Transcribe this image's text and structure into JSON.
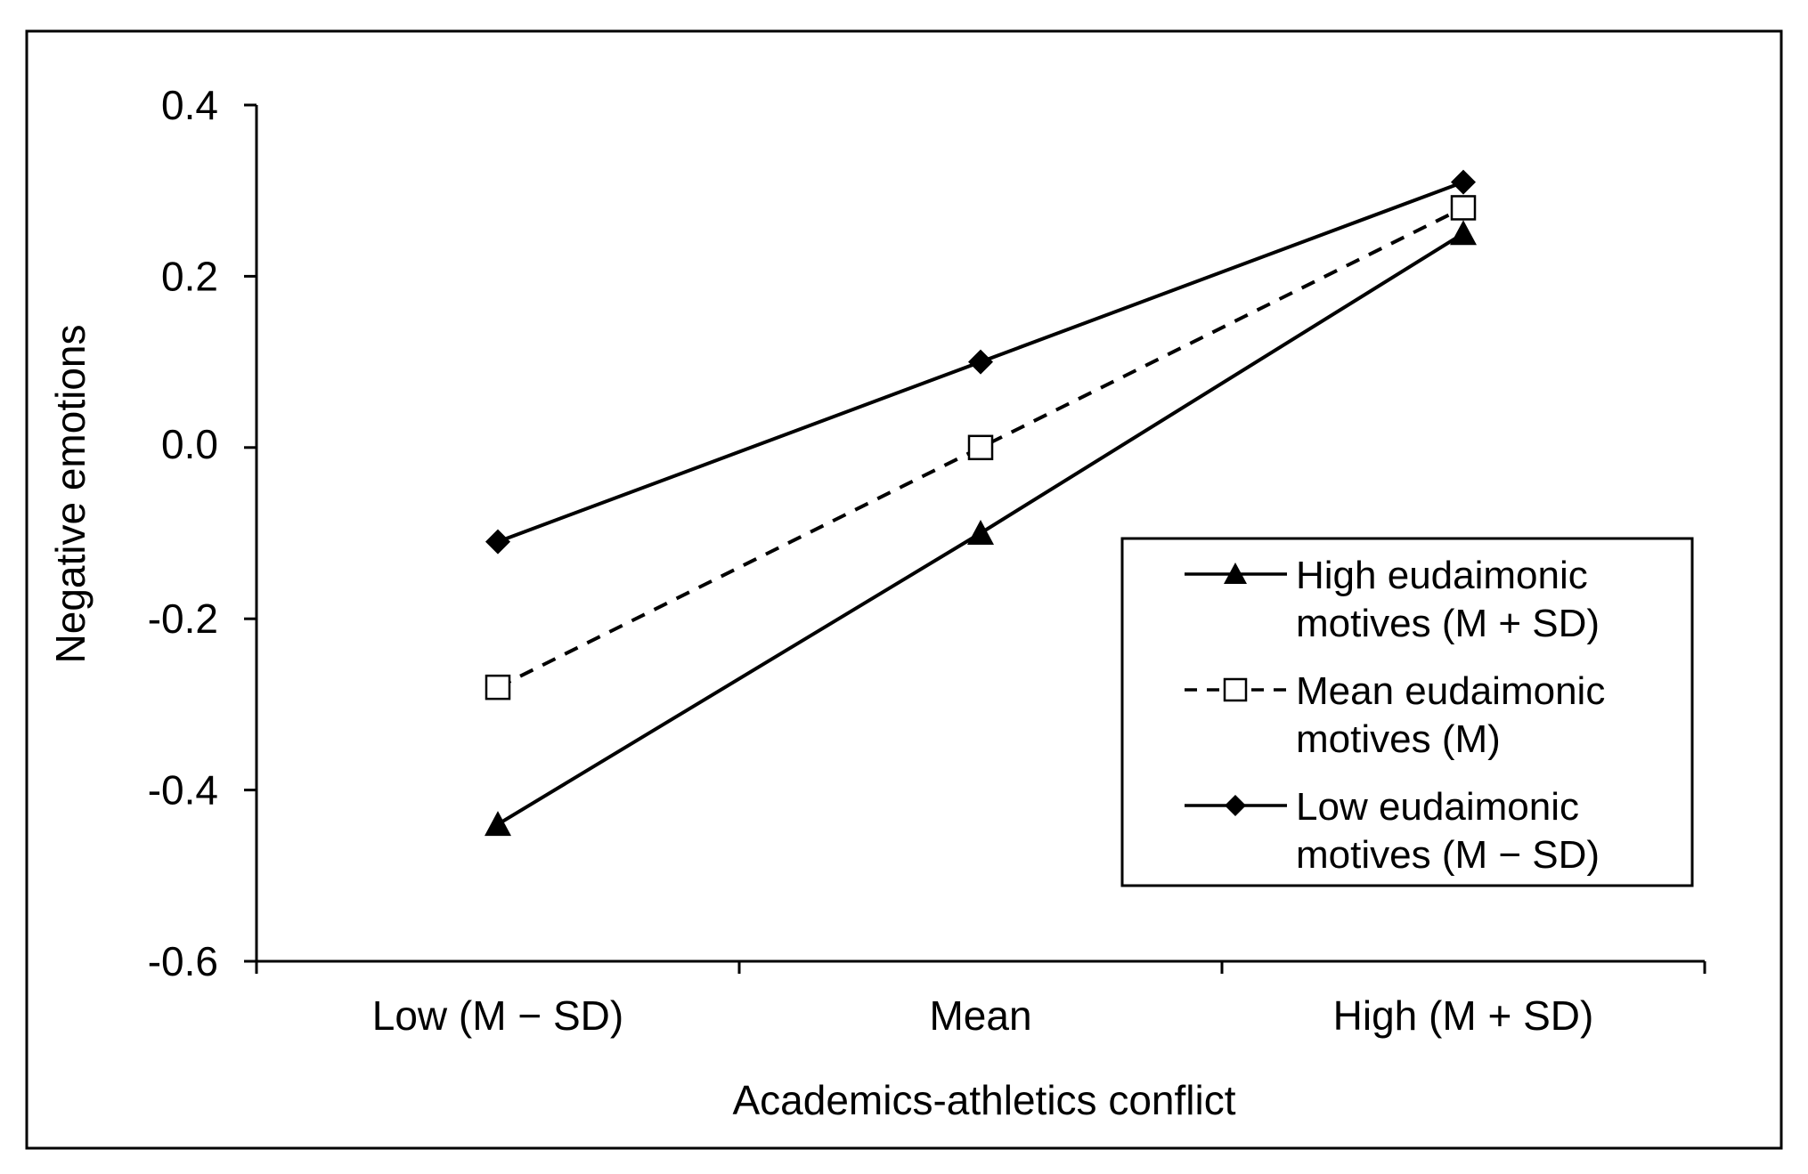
{
  "chart_data": {
    "type": "line",
    "title": "",
    "xlabel": "Academics-athletics conflict",
    "ylabel": "Negative emotions",
    "categories": [
      "Low (M − SD)",
      "Mean",
      "High (M + SD)"
    ],
    "ylim": [
      -0.6,
      0.4
    ],
    "yticks": [
      0.4,
      0.2,
      -0.2,
      -0.4,
      -0.6
    ],
    "ytick_labels": [
      "0.4",
      "0.2",
      "-0.2",
      "-0.4",
      "-0.6"
    ],
    "ytick_zero": {
      "value": 0.0,
      "label": "0.0"
    },
    "grid": false,
    "legend_position": "right",
    "series": [
      {
        "name": "High eudaimonic motives (M + SD)",
        "legend_lines": [
          "High eudaimonic",
          "motives (M + SD)"
        ],
        "marker": "triangle",
        "line_style": "solid",
        "values": [
          -0.44,
          -0.1,
          0.25
        ]
      },
      {
        "name": "Mean eudaimonic motives (M)",
        "legend_lines": [
          "Mean eudaimonic",
          "motives (M)"
        ],
        "marker": "square-open",
        "line_style": "dashed",
        "values": [
          -0.28,
          0.0,
          0.28
        ]
      },
      {
        "name": "Low eudaimonic motives (M − SD)",
        "legend_lines": [
          "Low eudaimonic",
          "motives (M − SD)"
        ],
        "marker": "diamond",
        "line_style": "solid",
        "values": [
          -0.11,
          0.1,
          0.31
        ]
      }
    ],
    "colors": {
      "line": "#000000",
      "marker_fill": "#000000",
      "open_marker_fill": "#ffffff",
      "background": "#ffffff"
    }
  }
}
